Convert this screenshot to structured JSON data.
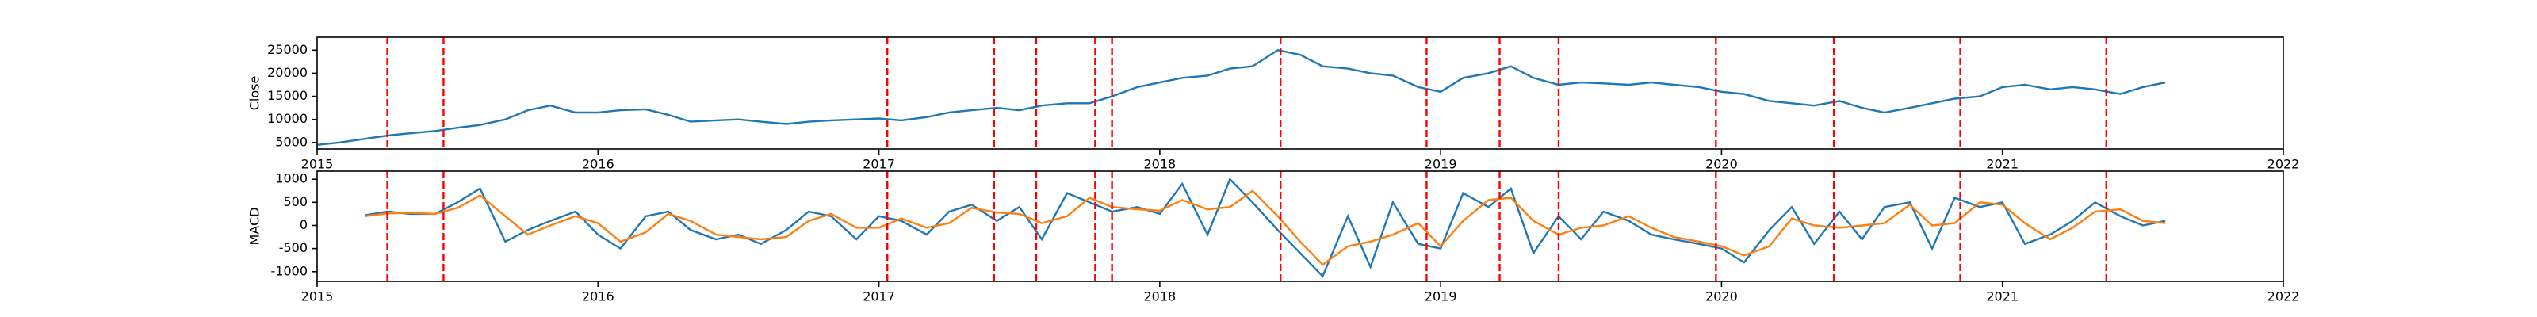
{
  "chart_data": [
    {
      "type": "line",
      "ylabel": "Close",
      "x": [
        2015,
        2015.08,
        2015.17,
        2015.25,
        2015.33,
        2015.42,
        2015.5,
        2015.58,
        2015.67,
        2015.75,
        2015.83,
        2015.92,
        2016,
        2016.08,
        2016.17,
        2016.25,
        2016.33,
        2016.42,
        2016.5,
        2016.58,
        2016.67,
        2016.75,
        2016.83,
        2016.92,
        2017,
        2017.08,
        2017.17,
        2017.25,
        2017.33,
        2017.42,
        2017.5,
        2017.58,
        2017.67,
        2017.75,
        2017.83,
        2017.92,
        2018,
        2018.08,
        2018.17,
        2018.25,
        2018.33,
        2018.42,
        2018.5,
        2018.58,
        2018.67,
        2018.75,
        2018.83,
        2018.92,
        2019,
        2019.08,
        2019.17,
        2019.25,
        2019.33,
        2019.42,
        2019.5,
        2019.58,
        2019.67,
        2019.75,
        2019.83,
        2019.92,
        2020,
        2020.08,
        2020.17,
        2020.25,
        2020.33,
        2020.42,
        2020.5,
        2020.58,
        2020.67,
        2020.75,
        2020.83,
        2020.92,
        2021,
        2021.08,
        2021.17,
        2021.25,
        2021.33,
        2021.42,
        2021.5,
        2021.58
      ],
      "series": [
        {
          "color": "#1f77b4",
          "values": [
            4500,
            5000,
            5800,
            6500,
            7000,
            7500,
            8200,
            8800,
            10000,
            12000,
            13000,
            11500,
            11500,
            12000,
            12200,
            11000,
            9500,
            9800,
            10000,
            9500,
            9000,
            9500,
            9800,
            10000,
            10200,
            9800,
            10500,
            11500,
            12000,
            12500,
            12000,
            13000,
            13500,
            13500,
            15000,
            17000,
            18000,
            19000,
            19500,
            21000,
            21500,
            25000,
            24000,
            21500,
            21000,
            20000,
            19500,
            17000,
            16000,
            19000,
            20000,
            21500,
            19000,
            17500,
            18000,
            17800,
            17500,
            18000,
            17500,
            17000,
            16000,
            15500,
            14000,
            13500,
            13000,
            14000,
            12500,
            11500,
            12500,
            13500,
            14500,
            15000,
            17000,
            17500,
            16500,
            17000,
            16500,
            15500,
            17000,
            18000
          ]
        }
      ],
      "xlim": [
        2015,
        2022
      ],
      "xticks": [
        2015,
        2016,
        2017,
        2018,
        2019,
        2020,
        2021,
        2022
      ],
      "ylim": [
        3600,
        27800
      ],
      "yticks": [
        5000,
        10000,
        15000,
        20000,
        25000
      ],
      "vlines": {
        "x": [
          2015.25,
          2015.45,
          2017.03,
          2017.41,
          2017.56,
          2017.77,
          2017.83,
          2018.43,
          2018.95,
          2019.21,
          2019.42,
          2019.98,
          2020.4,
          2020.85,
          2021.37
        ],
        "color": "#ff0000"
      }
    },
    {
      "type": "line",
      "ylabel": "MACD",
      "x": [
        2015,
        2015.08,
        2015.17,
        2015.25,
        2015.33,
        2015.42,
        2015.5,
        2015.58,
        2015.67,
        2015.75,
        2015.83,
        2015.92,
        2016,
        2016.08,
        2016.17,
        2016.25,
        2016.33,
        2016.42,
        2016.5,
        2016.58,
        2016.67,
        2016.75,
        2016.83,
        2016.92,
        2017,
        2017.08,
        2017.17,
        2017.25,
        2017.33,
        2017.42,
        2017.5,
        2017.58,
        2017.67,
        2017.75,
        2017.83,
        2017.92,
        2018,
        2018.08,
        2018.17,
        2018.25,
        2018.33,
        2018.42,
        2018.5,
        2018.58,
        2018.67,
        2018.75,
        2018.83,
        2018.92,
        2019,
        2019.08,
        2019.17,
        2019.25,
        2019.33,
        2019.42,
        2019.5,
        2019.58,
        2019.67,
        2019.75,
        2019.83,
        2019.92,
        2020,
        2020.08,
        2020.17,
        2020.25,
        2020.33,
        2020.42,
        2020.5,
        2020.58,
        2020.67,
        2020.75,
        2020.83,
        2020.92,
        2021,
        2021.08,
        2021.17,
        2021.25,
        2021.33,
        2021.42,
        2021.5,
        2021.58
      ],
      "series": [
        {
          "color": "#1f77b4",
          "values": [
            null,
            null,
            220,
            300,
            250,
            250,
            500,
            800,
            -350,
            -100,
            100,
            300,
            -200,
            -500,
            200,
            300,
            -100,
            -300,
            -200,
            -400,
            -100,
            300,
            200,
            -300,
            200,
            100,
            -200,
            300,
            450,
            100,
            400,
            -300,
            700,
            500,
            300,
            400,
            250,
            900,
            -200,
            1000,
            500,
            -100,
            -600,
            -1100,
            200,
            -900,
            500,
            -400,
            -500,
            700,
            400,
            800,
            -600,
            200,
            -300,
            300,
            100,
            -200,
            -300,
            -400,
            -500,
            -800,
            -100,
            400,
            -400,
            300,
            -300,
            400,
            500,
            -500,
            600,
            400,
            500,
            -400,
            -200,
            100,
            500,
            200,
            0,
            100
          ]
        },
        {
          "color": "#ff7f0e",
          "values": [
            null,
            null,
            200,
            260,
            275,
            250,
            380,
            650,
            200,
            -200,
            0,
            200,
            50,
            -350,
            -150,
            250,
            100,
            -200,
            -250,
            -300,
            -250,
            100,
            250,
            -50,
            -50,
            150,
            -50,
            50,
            380,
            280,
            250,
            50,
            200,
            600,
            400,
            350,
            320,
            550,
            350,
            400,
            750,
            200,
            -350,
            -850,
            -450,
            -350,
            -200,
            50,
            -450,
            100,
            550,
            600,
            100,
            -200,
            -50,
            0,
            200,
            -50,
            -250,
            -350,
            -450,
            -650,
            -450,
            150,
            0,
            -50,
            0,
            50,
            450,
            0,
            50,
            500,
            450,
            50,
            -300,
            -50,
            300,
            350,
            100,
            50
          ]
        }
      ],
      "xlim": [
        2015,
        2022
      ],
      "xticks": [
        2015,
        2016,
        2017,
        2018,
        2019,
        2020,
        2021,
        2022
      ],
      "ylim": [
        -1210,
        1175
      ],
      "yticks": [
        -1000,
        -500,
        0,
        500,
        1000
      ],
      "vlines": {
        "x": [
          2015.25,
          2015.45,
          2017.03,
          2017.41,
          2017.56,
          2017.77,
          2017.83,
          2018.43,
          2018.95,
          2019.21,
          2019.42,
          2019.98,
          2020.4,
          2020.85,
          2021.37
        ],
        "color": "#ff0000"
      }
    }
  ]
}
